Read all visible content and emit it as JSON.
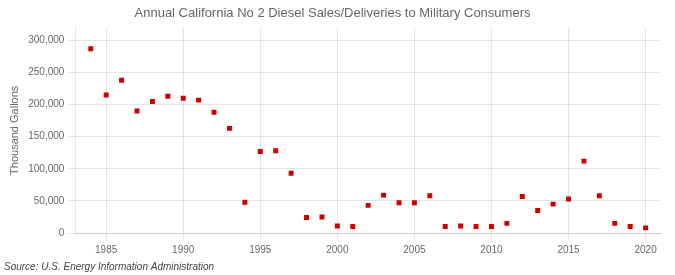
{
  "chart_data": {
    "type": "scatter",
    "title": "Annual California No 2 Diesel Sales/Deliveries to Military Consumers",
    "ylabel": "Thousand Gallons",
    "annotations": [
      "Source: U.S. Energy Information Administration"
    ],
    "x": [
      1984,
      1985,
      1986,
      1987,
      1988,
      1989,
      1990,
      1991,
      1992,
      1993,
      1994,
      1995,
      1996,
      1997,
      1998,
      1999,
      2000,
      2001,
      2002,
      2003,
      2004,
      2005,
      2006,
      2007,
      2008,
      2009,
      2010,
      2011,
      2012,
      2013,
      2014,
      2015,
      2016,
      2017,
      2018,
      2019,
      2020
    ],
    "values": [
      287000,
      215000,
      238000,
      190000,
      205000,
      213000,
      210000,
      207000,
      188000,
      163000,
      48000,
      127000,
      128000,
      93000,
      24000,
      25000,
      11000,
      10000,
      43000,
      59000,
      47000,
      47000,
      58000,
      10000,
      11000,
      10000,
      10000,
      15000,
      57000,
      35000,
      45000,
      53000,
      112000,
      58000,
      15000,
      10000,
      8000
    ],
    "color": "#cc0000",
    "marker": "square",
    "xlim": [
      1983,
      2021
    ],
    "ylim": [
      0,
      320000
    ],
    "xticks": [
      1985,
      1990,
      1995,
      2000,
      2005,
      2010,
      2015,
      2020
    ],
    "yticks": [
      0,
      {
        "value": 50000,
        "label": "50,000"
      },
      {
        "value": 100000,
        "label": "100,000"
      },
      {
        "value": 150000,
        "label": "150,000"
      },
      {
        "value": 200000,
        "label": "200,000"
      },
      {
        "value": 250000,
        "label": "250,000"
      },
      {
        "value": 300000,
        "label": "300,000"
      }
    ],
    "grid": true
  }
}
